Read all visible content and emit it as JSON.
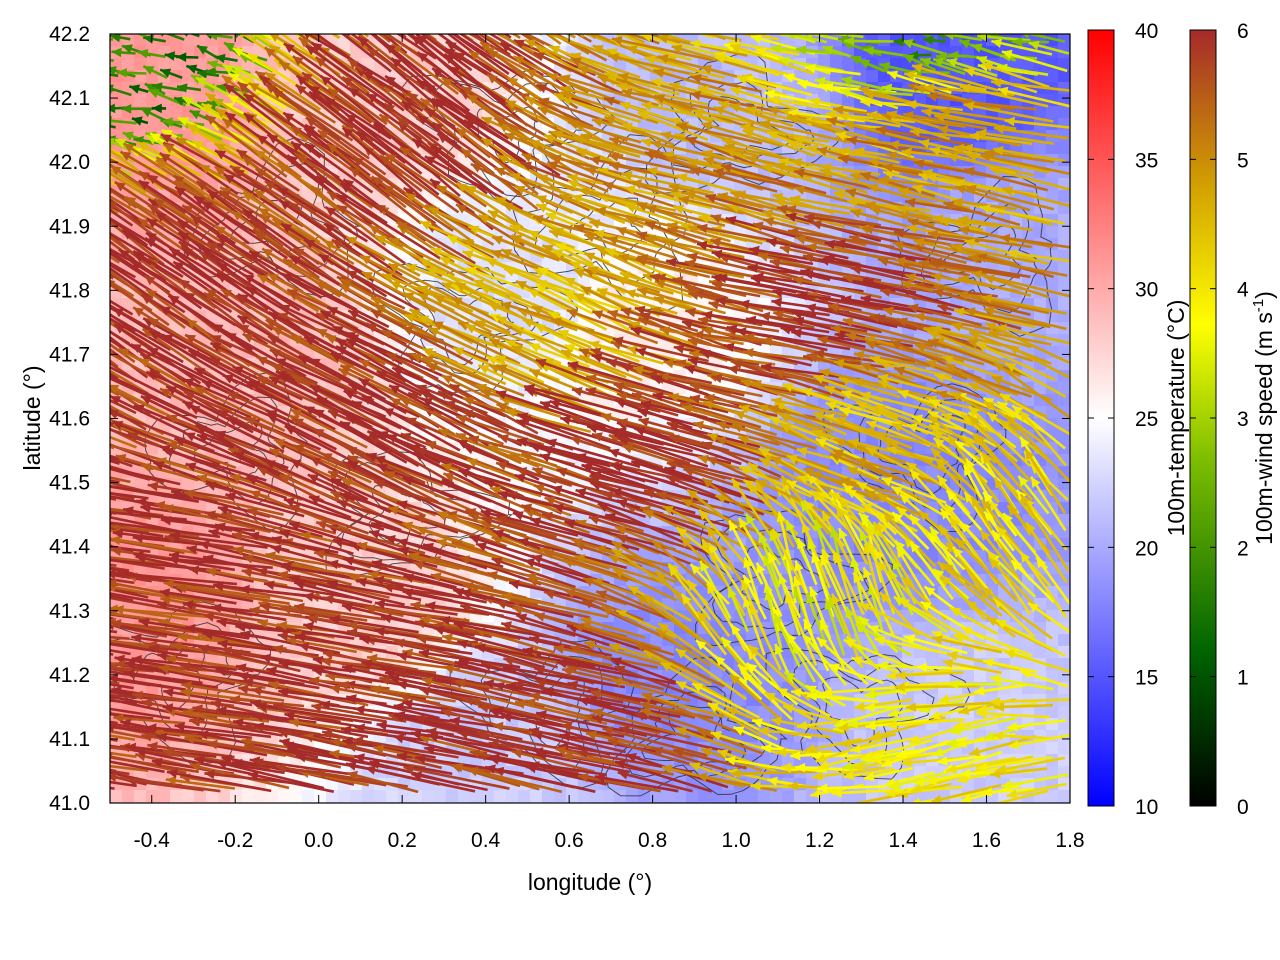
{
  "chart_data": {
    "type": "heatmap",
    "subtype": "vector-field over temperature map with contours",
    "xlabel": "longitude (°)",
    "ylabel": "latitude (°)",
    "xlim": [
      -0.5,
      1.8
    ],
    "ylim": [
      41.0,
      42.2
    ],
    "x_ticks": [
      "-0.4",
      "-0.2",
      "0.0",
      "0.2",
      "0.4",
      "0.6",
      "0.8",
      "1.0",
      "1.2",
      "1.4",
      "1.6",
      "1.8"
    ],
    "y_ticks": [
      "41.0",
      "41.1",
      "41.2",
      "41.3",
      "41.4",
      "41.5",
      "41.6",
      "41.7",
      "41.8",
      "41.9",
      "42.0",
      "42.1",
      "42.2"
    ],
    "temperature_colorbar": {
      "label": "100m-temperature (°C)",
      "range": [
        10,
        40
      ],
      "ticks": [
        "10",
        "15",
        "20",
        "25",
        "30",
        "35",
        "40"
      ],
      "colors": [
        "#0000ff",
        "#ffffff",
        "#ff0000"
      ]
    },
    "wind_colorbar": {
      "label_main": "100m-wind speed (m s",
      "label_sup": "-1",
      "label_end": ")",
      "range": [
        0,
        6
      ],
      "ticks": [
        "0",
        "1",
        "2",
        "3",
        "4",
        "5",
        "6"
      ],
      "colors": [
        "#000000",
        "#006400",
        "#7fbf00",
        "#ffff00",
        "#d2a000",
        "#a52a2a"
      ]
    },
    "temperature_regions": [
      {
        "lon": -0.45,
        "lat": 41.3,
        "temp": 31
      },
      {
        "lon": -0.4,
        "lat": 42.1,
        "temp": 31
      },
      {
        "lon": -0.2,
        "lat": 41.7,
        "temp": 29
      },
      {
        "lon": 0.1,
        "lat": 41.3,
        "temp": 28
      },
      {
        "lon": 0.1,
        "lat": 42.1,
        "temp": 28
      },
      {
        "lon": 0.4,
        "lat": 41.1,
        "temp": 22
      },
      {
        "lon": 0.5,
        "lat": 41.8,
        "temp": 23
      },
      {
        "lon": 0.75,
        "lat": 41.75,
        "temp": 26
      },
      {
        "lon": 0.85,
        "lat": 41.2,
        "temp": 18
      },
      {
        "lon": 1.0,
        "lat": 42.1,
        "temp": 21
      },
      {
        "lon": 1.4,
        "lat": 41.5,
        "temp": 18
      },
      {
        "lon": 1.5,
        "lat": 42.15,
        "temp": 15
      },
      {
        "lon": 1.6,
        "lat": 41.1,
        "temp": 22
      },
      {
        "lon": 1.7,
        "lat": 41.85,
        "temp": 20
      }
    ],
    "wind_regions": [
      {
        "lon": -0.3,
        "lat": 41.3,
        "u": -5.8,
        "v": 0.8,
        "speed": 6
      },
      {
        "lon": -0.3,
        "lat": 41.8,
        "u": -4.5,
        "v": 3.0,
        "speed": 6
      },
      {
        "lon": -0.45,
        "lat": 42.15,
        "u": -1.5,
        "v": 0.3,
        "speed": 1.5
      },
      {
        "lon": 0.2,
        "lat": 41.2,
        "u": -5.8,
        "v": 1.0,
        "speed": 6
      },
      {
        "lon": 0.2,
        "lat": 41.6,
        "u": -5.0,
        "v": 2.5,
        "speed": 6
      },
      {
        "lon": 0.3,
        "lat": 42.0,
        "u": -4.0,
        "v": 3.0,
        "speed": 6
      },
      {
        "lon": 0.7,
        "lat": 41.1,
        "u": -5.5,
        "v": 1.2,
        "speed": 6
      },
      {
        "lon": 0.6,
        "lat": 41.75,
        "u": -3.5,
        "v": 1.5,
        "speed": 4.5
      },
      {
        "lon": 0.9,
        "lat": 41.5,
        "u": -5.2,
        "v": 1.5,
        "speed": 6
      },
      {
        "lon": 1.0,
        "lat": 41.95,
        "u": -4.2,
        "v": 1.2,
        "speed": 5
      },
      {
        "lon": 1.3,
        "lat": 41.75,
        "u": -5.5,
        "v": 1.0,
        "speed": 6
      },
      {
        "lon": 1.4,
        "lat": 41.55,
        "u": -3.0,
        "v": 1.0,
        "speed": 4.5
      },
      {
        "lon": 1.2,
        "lat": 41.3,
        "u": -0.8,
        "v": 2.5,
        "speed": 3.5
      },
      {
        "lon": 1.5,
        "lat": 41.1,
        "u": -2.5,
        "v": -0.5,
        "speed": 3.8
      },
      {
        "lon": 1.7,
        "lat": 41.4,
        "u": -1.5,
        "v": 2.0,
        "speed": 4
      },
      {
        "lon": 1.6,
        "lat": 42.05,
        "u": -4.0,
        "v": 0.8,
        "speed": 5
      },
      {
        "lon": 1.55,
        "lat": 42.18,
        "u": -1.5,
        "v": 0.3,
        "speed": 2
      }
    ]
  }
}
